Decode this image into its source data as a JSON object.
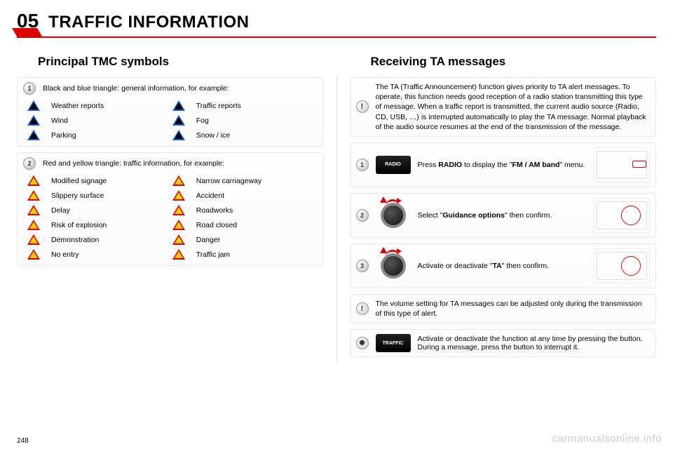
{
  "chapter_num": "05",
  "chapter_title": "TRAFFIC INFORMATION",
  "page_number": "248",
  "watermark": "carmanualsonline.info",
  "left": {
    "heading": "Principal TMC symbols",
    "group1": {
      "intro": "Black and blue triangle: general information, for example:",
      "items": [
        {
          "label": "Weather reports"
        },
        {
          "label": "Traffic reports"
        },
        {
          "label": "Wind"
        },
        {
          "label": "Fog"
        },
        {
          "label": "Parking"
        },
        {
          "label": "Snow / ice"
        }
      ]
    },
    "group2": {
      "intro": "Red and yellow triangle: traffic information, for example:",
      "items": [
        {
          "label": "Modified signage"
        },
        {
          "label": "Narrow carriageway"
        },
        {
          "label": "Slippery surface"
        },
        {
          "label": "Accident"
        },
        {
          "label": "Delay"
        },
        {
          "label": "Roadworks"
        },
        {
          "label": "Risk of explosion"
        },
        {
          "label": "Road closed"
        },
        {
          "label": "Demonstration"
        },
        {
          "label": "Danger"
        },
        {
          "label": "No entry"
        },
        {
          "label": "Traffic jam"
        }
      ]
    }
  },
  "right": {
    "heading": "Receiving TA messages",
    "note": "The TA (Traffic Announcement) function gives priority to TA alert messages. To operate, this function needs good reception of a radio station transmitting this type of message. When a traffic report is transmitted, the current audio source (Radio, CD, USB, …) is interrupted automatically to play the TA message. Normal playback of the audio source resumes at the end of the transmission of the message.",
    "step1": {
      "btn": "RADIO",
      "prefix": "Press ",
      "bold1": "RADIO",
      "mid": " to display the \"",
      "bold2": "FM / AM band",
      "suffix": "\" menu."
    },
    "step2": {
      "prefix": "Select \"",
      "bold": "Guidance options",
      "suffix": "\" then confirm."
    },
    "step3": {
      "prefix": "Activate or deactivate \"",
      "bold": "TA",
      "suffix": "\" then confirm."
    },
    "volume_note": "The volume setting for TA messages can be adjusted only during the transmission of this type of alert.",
    "traffic_btn": "TRAFFIC",
    "traffic_line1": "Activate or deactivate the function at any time by pressing the button.",
    "traffic_line2": "During a message, press the button to interrupt it."
  },
  "colors": {
    "accent": "#d00",
    "blue": "#0b5ed7",
    "yellow": "#ffcc00"
  }
}
